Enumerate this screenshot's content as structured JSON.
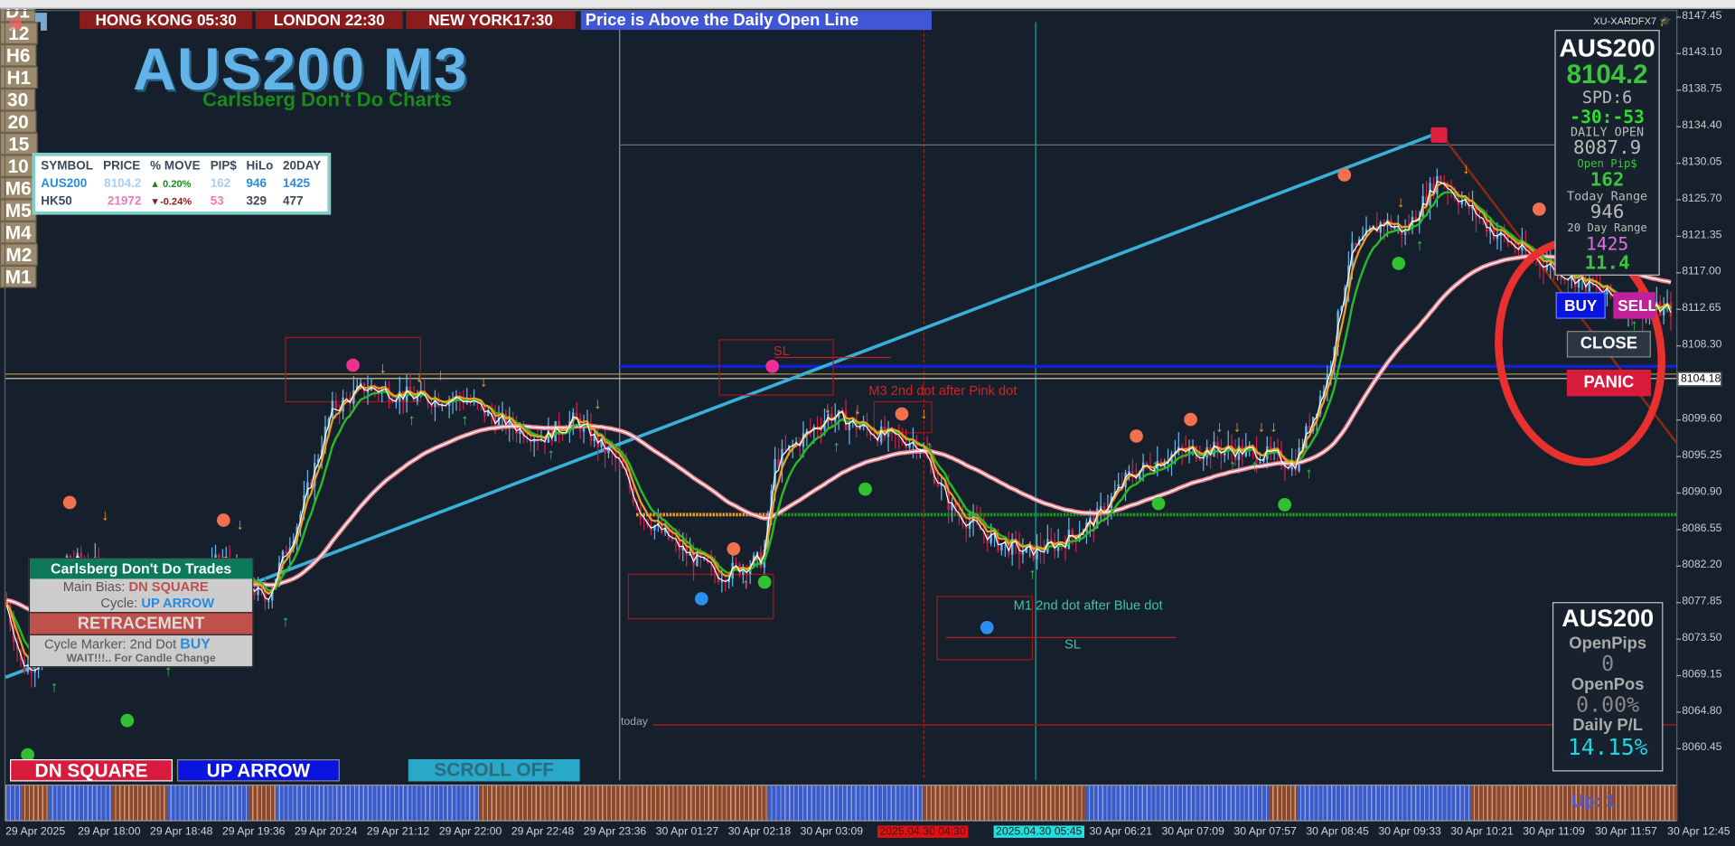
{
  "header": {
    "clocks": [
      "HONG KONG 05:30",
      "LONDON  22:30",
      "NEW YORK17:30"
    ],
    "status": "Price is Above the Daily Open Line",
    "account": "XU-XARDFX7"
  },
  "title": "AUS200 M3",
  "subtitle": "Carlsberg Don't Do Charts",
  "market_table": {
    "headers": [
      "SYMBOL",
      "PRICE",
      "% MOVE",
      "PIP$",
      "HiLo",
      "20DAY"
    ],
    "rows": [
      [
        "AUS200",
        "8104.2",
        "▲ 0.20%",
        "162",
        "946",
        "1425"
      ],
      [
        "HK50",
        "21972",
        "▼-0.24%",
        "53",
        "329",
        "477"
      ]
    ]
  },
  "info_panel": {
    "symbol": "AUS200",
    "price": "8104.2",
    "spread": "SPD:6",
    "timer": "-30:-53",
    "daily_open_label": "DAILY OPEN",
    "daily_open": "8087.9",
    "open_pips_label": "Open Pip$",
    "open_pips": "162",
    "today_range_label": "Today Range",
    "today_range": "946",
    "day20_label": "20 Day Range",
    "day20": "1425",
    "partial": "11.4"
  },
  "trade_buttons": {
    "buy": "BUY",
    "sell": "SELL",
    "close": "CLOSE",
    "panic": "PANIC"
  },
  "pl_panel": {
    "symbol": "AUS200",
    "open_pips_label": "OpenPips",
    "open_pips": "0",
    "open_pos_label": "OpenPos",
    "open_pos": "0.00%",
    "daily_pl_label": "Daily P/L",
    "daily_pl": "14.15%"
  },
  "trade_panel": {
    "title": "Carlsberg Don't Do Trades",
    "bias_label": "Main Bias:",
    "bias": "DN SQUARE",
    "cycle_label": "Cycle:",
    "cycle": "UP ARROW",
    "state": "RETRACEMENT",
    "marker_label": "Cycle Marker: 2nd Dot",
    "marker": "BUY",
    "wait": "WAIT!!!.. For Candle Change"
  },
  "bottom_buttons": {
    "bias": "DN SQUARE",
    "cycle": "UP ARROW",
    "scroll": "SCROLL OFF",
    "timeframes": [
      "D1",
      "12",
      "H6",
      "H1",
      "30",
      "20",
      "15",
      "10",
      "M6",
      "M5",
      "M4",
      "M2",
      "M1"
    ]
  },
  "strength_label": "Up: 1",
  "strength_states": [
    "up",
    "down",
    "up",
    "down",
    "up",
    "down",
    "up",
    "down",
    "up",
    "down",
    "up",
    "down",
    "up",
    "down"
  ],
  "price_axis": {
    "labels": [
      "8147.45",
      "8143.10",
      "8138.75",
      "8134.40",
      "8130.05",
      "8125.70",
      "8121.35",
      "8117.00",
      "8112.65",
      "8108.30",
      "8104.18",
      "8099.60",
      "8095.25",
      "8090.90",
      "8086.55",
      "8082.20",
      "8077.85",
      "8073.50",
      "8069.15",
      "8064.80",
      "8060.45"
    ],
    "current": "8104.18"
  },
  "time_axis": {
    "labels": [
      "29 Apr 2025",
      "29 Apr 18:00",
      "29 Apr 18:48",
      "29 Apr 19:36",
      "29 Apr 20:24",
      "29 Apr 21:12",
      "29 Apr 22:00",
      "29 Apr 22:48",
      "29 Apr 23:36",
      "30 Apr 01:27",
      "30 Apr 02:18",
      "30 Apr 03:09",
      "30 Apr 06:21",
      "30 Apr 07:09",
      "30 Apr 07:57",
      "30 Apr 08:45",
      "30 Apr 09:33",
      "30 Apr 10:21",
      "30 Apr 11:09",
      "30 Apr 11:57",
      "30 Apr 12:45"
    ],
    "crosshair_red": "2025.04.30 04:30",
    "crosshair_cyan": "2025.04.30 05:45"
  },
  "annotations": {
    "sl1": "SL",
    "sl2": "SL",
    "m3": "M3 2nd dot after Pink dot",
    "m1": "M1 2nd dot after Blue dot",
    "today": "today"
  },
  "colors": {
    "bull": "#6ab4e8",
    "bear": "#d0204a",
    "accent": "#62b4e6",
    "panic": "#d81b3c",
    "buy": "#0a14e0",
    "sell": "#c0209a"
  }
}
